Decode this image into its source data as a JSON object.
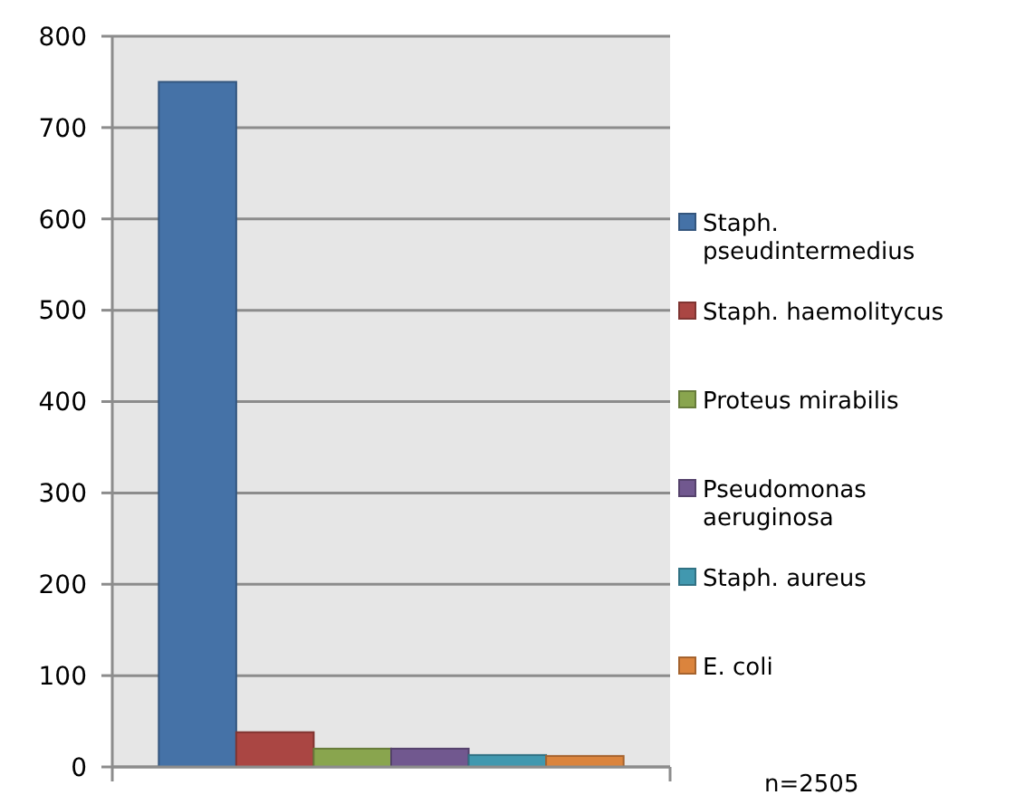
{
  "chart_data": {
    "type": "bar",
    "categories": [
      null
    ],
    "series": [
      {
        "name": "Staph. pseudintermedius",
        "color": "#4572a7",
        "values": [
          750
        ]
      },
      {
        "name": "Staph. haemolitycus",
        "color": "#aa4643",
        "values": [
          38
        ]
      },
      {
        "name": "Proteus mirabilis",
        "color": "#89a54e",
        "values": [
          20
        ]
      },
      {
        "name": "Pseudomonas aeruginosa",
        "color": "#71588f",
        "values": [
          20
        ]
      },
      {
        "name": "Staph. aureus",
        "color": "#4198af",
        "values": [
          13
        ]
      },
      {
        "name": "E. coli",
        "color": "#db843d",
        "values": [
          12
        ]
      }
    ],
    "ylim": [
      0,
      800
    ],
    "yticks": [
      0,
      100,
      200,
      300,
      400,
      500,
      600,
      700,
      800
    ],
    "grid": "y",
    "legend": "right",
    "annotations": [
      "n=2505"
    ]
  }
}
